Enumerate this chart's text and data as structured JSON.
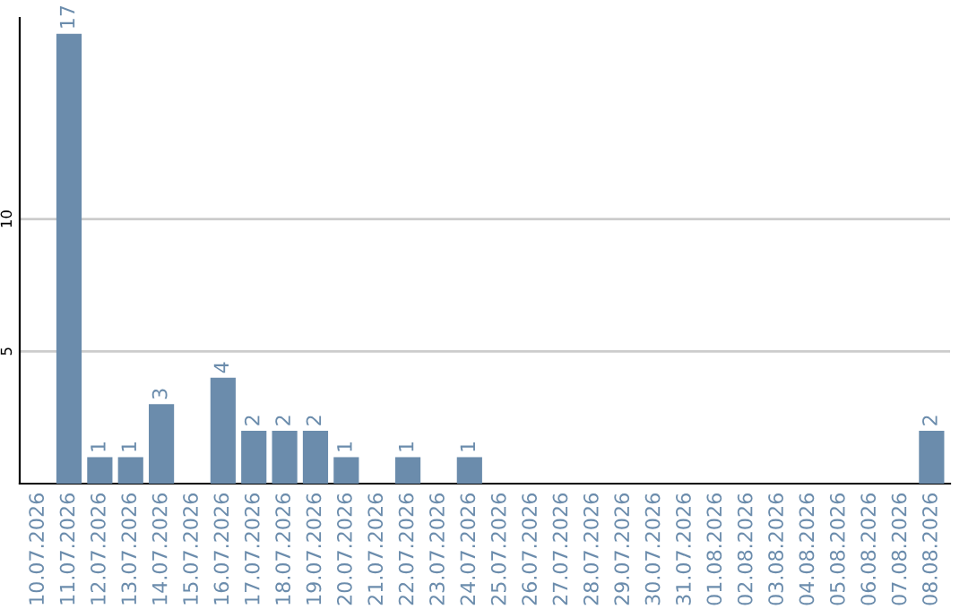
{
  "chart_data": {
    "type": "bar",
    "categories": [
      "10.07.2026",
      "11.07.2026",
      "12.07.2026",
      "13.07.2026",
      "14.07.2026",
      "15.07.2026",
      "16.07.2026",
      "17.07.2026",
      "18.07.2026",
      "19.07.2026",
      "20.07.2026",
      "21.07.2026",
      "22.07.2026",
      "23.07.2026",
      "24.07.2026",
      "25.07.2026",
      "26.07.2026",
      "27.07.2026",
      "28.07.2026",
      "29.07.2026",
      "30.07.2026",
      "31.07.2026",
      "01.08.2026",
      "02.08.2026",
      "03.08.2026",
      "04.08.2026",
      "05.08.2026",
      "06.08.2026",
      "07.08.2026",
      "08.08.2026"
    ],
    "values": [
      0,
      17,
      1,
      1,
      3,
      0,
      4,
      2,
      2,
      2,
      1,
      0,
      1,
      0,
      1,
      0,
      0,
      0,
      0,
      0,
      0,
      0,
      0,
      0,
      0,
      0,
      0,
      0,
      0,
      2
    ],
    "value_labels": [
      null,
      "17",
      "1",
      "1",
      "3",
      null,
      "4",
      "2",
      "2",
      "2",
      "1",
      null,
      "1",
      null,
      "1",
      null,
      null,
      null,
      null,
      null,
      null,
      null,
      null,
      null,
      null,
      null,
      null,
      null,
      null,
      "2"
    ],
    "color": "#6b8cac",
    "ylim": [
      0,
      17.6
    ],
    "yticks": [
      5,
      10
    ],
    "grid": "y"
  }
}
